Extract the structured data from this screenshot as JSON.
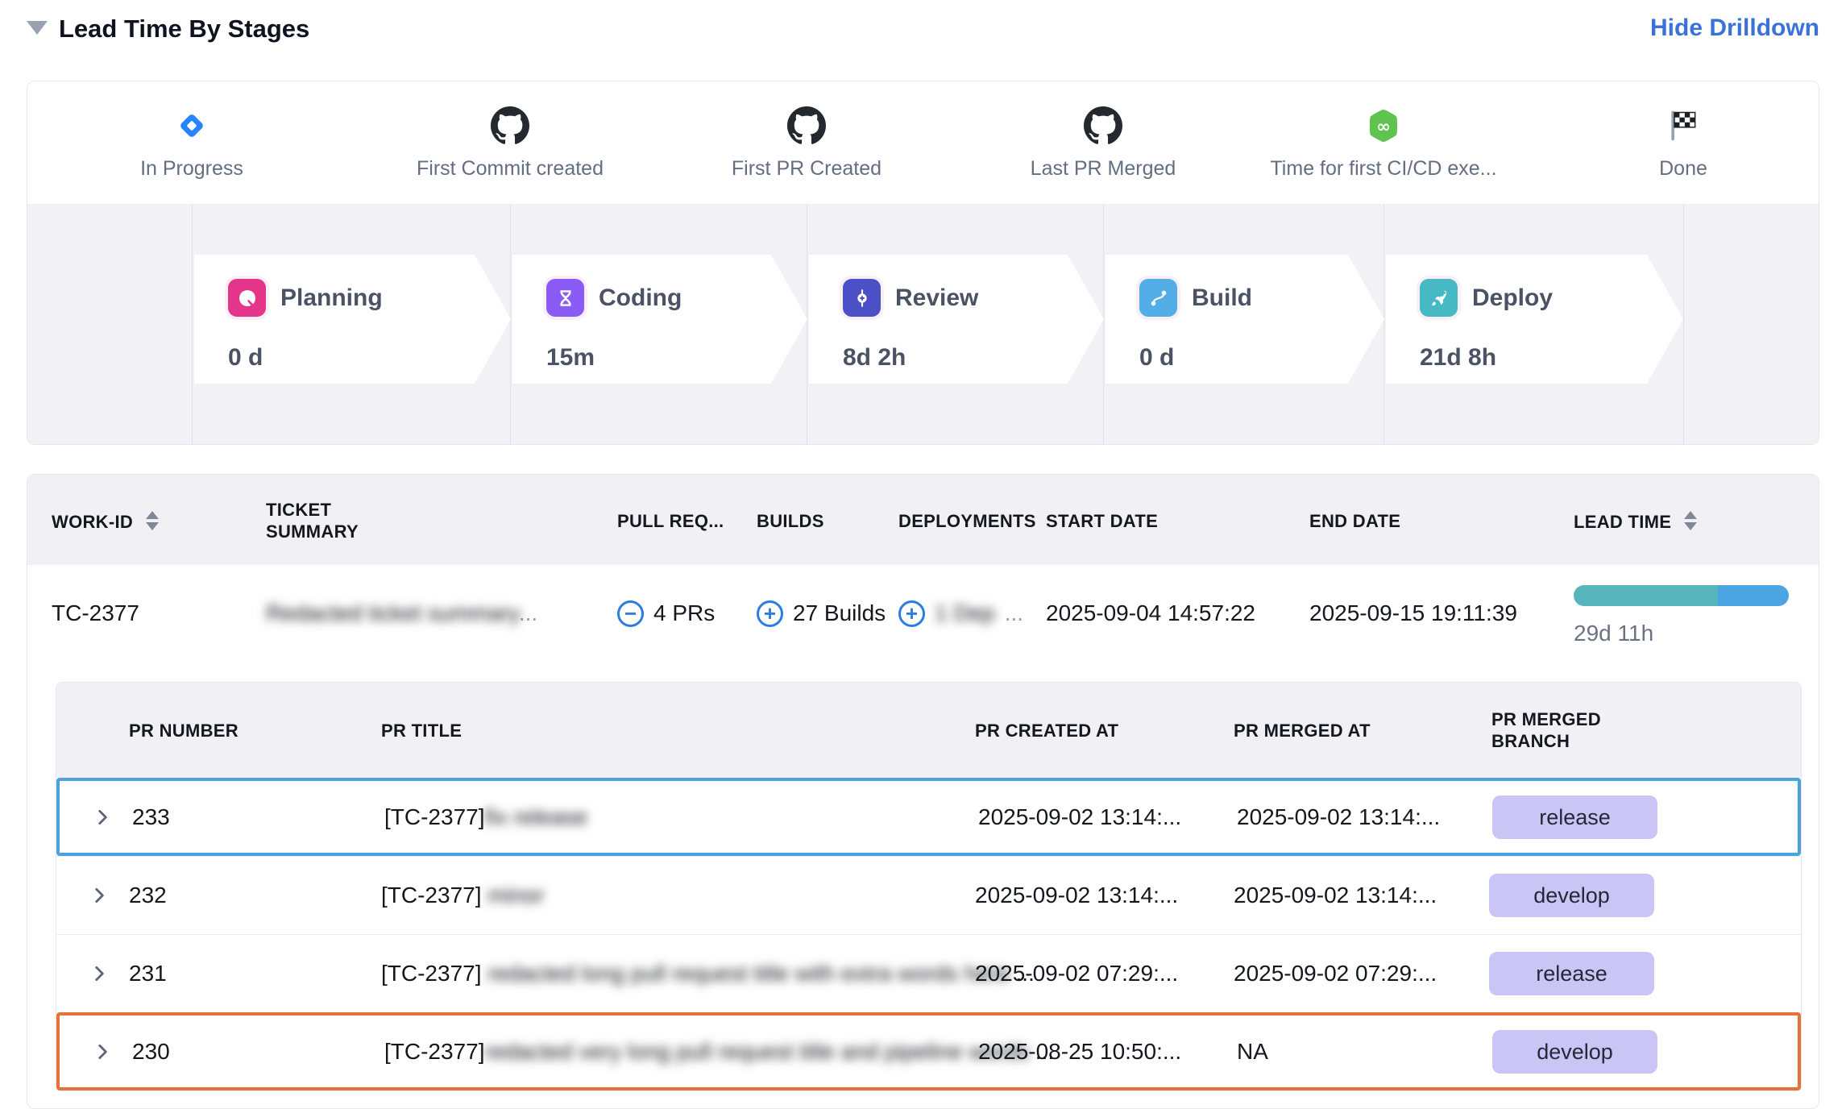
{
  "header": {
    "collapse_icon": "collapsed-triangle",
    "title": "Lead Time By Stages",
    "hide_drilldown_label": "Hide Drilldown"
  },
  "colors": {
    "accent_blue": "#3b72d8",
    "icon_blue": "#2a7de1",
    "highlight_blue": "#4aa3dd",
    "highlight_orange": "#e8703a",
    "badge_bg": "#c9c6f5",
    "badge_text": "#23283a",
    "bar_teal": "#56b5bd",
    "bar_blue": "#4aa5e2",
    "jira_blue": "#2684ff",
    "github_black": "#24292f",
    "cicd_green": "#5fc34f"
  },
  "pipeline": {
    "milestones": [
      {
        "label": "In Progress",
        "icon": "jira-status-icon"
      },
      {
        "label": "First Commit created",
        "icon": "github-icon"
      },
      {
        "label": "First PR Created",
        "icon": "github-icon"
      },
      {
        "label": "Last PR Merged",
        "icon": "github-icon"
      },
      {
        "label": "Time for first CI/CD exe...",
        "icon": "cicd-icon"
      },
      {
        "label": "Done",
        "icon": "checkered-flag-icon"
      }
    ],
    "stages": [
      {
        "name": "Planning",
        "duration": "0 d",
        "color": "#e5358b"
      },
      {
        "name": "Coding",
        "duration": "15m",
        "color": "#8a5cf5"
      },
      {
        "name": "Review",
        "duration": "8d 2h",
        "color": "#4b50c6"
      },
      {
        "name": "Build",
        "duration": "0 d",
        "color": "#53ade7"
      },
      {
        "name": "Deploy",
        "duration": "21d 8h",
        "color": "#47b9c4"
      }
    ]
  },
  "work_table": {
    "columns": {
      "work_id": "WORK-ID",
      "ticket_summary": "TICKET SUMMARY",
      "pull_requests": "PULL REQ...",
      "builds": "BUILDS",
      "deployments": "DEPLOYMENTS",
      "start_date": "START DATE",
      "end_date": "END DATE",
      "lead_time": "LEAD TIME"
    },
    "row": {
      "work_id": "TC-2377",
      "ticket_summary_redacted": "Redacted ticket summary",
      "ticket_summary_suffix": "...",
      "pull_requests": "4 PRs",
      "builds": "27 Builds",
      "deployments_redacted": "1 Dep",
      "deployments_suffix": "...",
      "start_date": "2025-09-04 14:57:22",
      "end_date": "2025-09-15 19:11:39",
      "lead_time": "29d 11h",
      "lead_bar": {
        "teal_pct": 67,
        "blue_pct": 33
      }
    }
  },
  "pr_table": {
    "columns": {
      "number": "PR NUMBER",
      "title": "PR TITLE",
      "created": "PR CREATED AT",
      "merged": "PR MERGED AT",
      "branch": "PR MERGED BRANCH"
    },
    "rows": [
      {
        "number": "233",
        "title_prefix": "[TC-2377]",
        "title_redacted": "fix release",
        "title_suffix": "",
        "created": "2025-09-02 13:14:...",
        "merged": "2025-09-02 13:14:...",
        "branch": "release",
        "highlight": "blue"
      },
      {
        "number": "232",
        "title_prefix": "[TC-2377]",
        "title_redacted": "minor",
        "title_suffix": "",
        "created": "2025-09-02 13:14:...",
        "merged": "2025-09-02 13:14:...",
        "branch": "develop",
        "highlight": "none"
      },
      {
        "number": "231",
        "title_prefix": "[TC-2377]",
        "title_redacted": "redacted long pull request title with extra words here",
        "title_suffix": "...",
        "created": "2025-09-02 07:29:...",
        "merged": "2025-09-02 07:29:...",
        "branch": "release",
        "highlight": "none"
      },
      {
        "number": "230",
        "title_prefix": "[TC-2377]",
        "title_redacted": "redacted very long pull request title and pipeline words",
        "title_suffix": "...",
        "created": "2025-08-25 10:50:...",
        "merged": "NA",
        "branch": "develop",
        "highlight": "orange"
      }
    ]
  }
}
